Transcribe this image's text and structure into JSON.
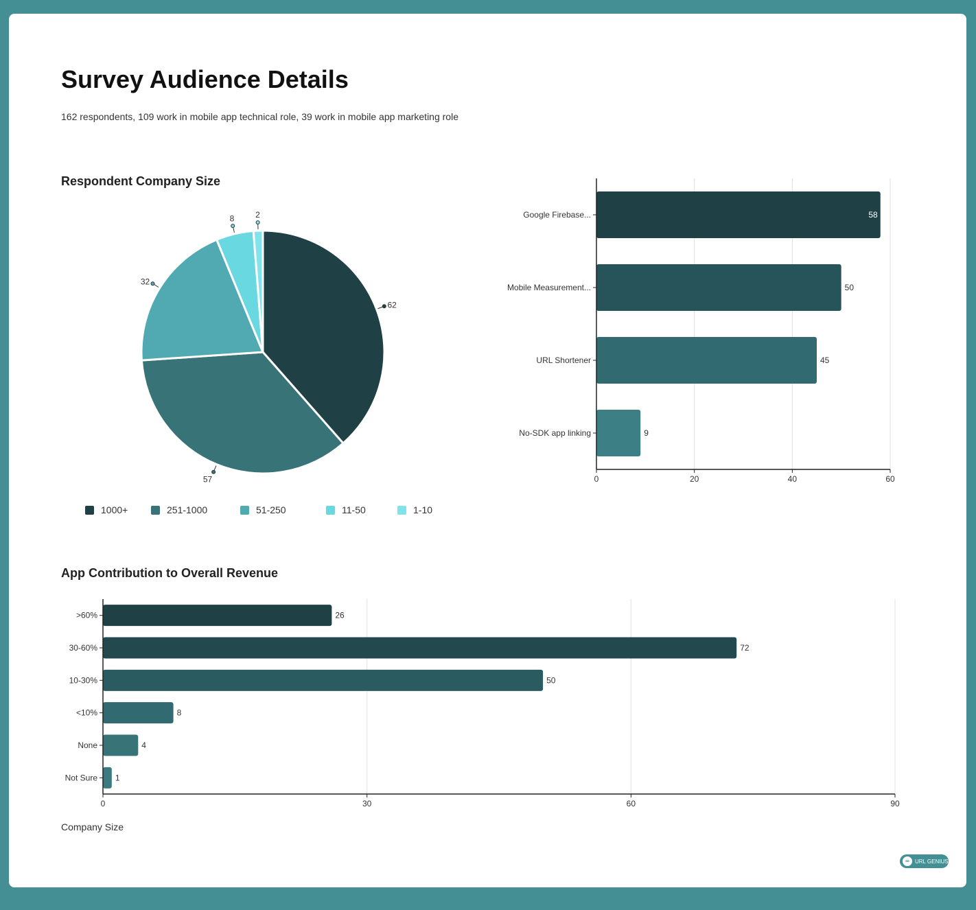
{
  "page": {
    "title": "Survey Audience Details",
    "subtitle": "162 respondents, 109 work in mobile app technical role, 39 work in mobile app marketing role",
    "footer_label": "Company Size",
    "badge_text": "URL GENIUS",
    "badge_icon": "link-icon"
  },
  "chart_data": [
    {
      "type": "pie",
      "title": "Respondent Company Size",
      "categories": [
        "1000+",
        "251-1000",
        "51-250",
        "11-50",
        "1-10"
      ],
      "values": [
        62,
        57,
        32,
        8,
        2
      ],
      "colors": [
        "#1f4145",
        "#387378",
        "#51a9b2",
        "#6ad8e0",
        "#80e4ea"
      ],
      "legend": "bottom"
    },
    {
      "type": "bar",
      "orientation": "horizontal",
      "title": "",
      "categories": [
        "Google Firebase...",
        "Mobile Measurement...",
        "URL Shortener",
        "No-SDK app linking"
      ],
      "values": [
        58,
        50,
        45,
        9
      ],
      "colors": [
        "#1f4145",
        "#27545a",
        "#316b71",
        "#3c7f85"
      ],
      "xlim": [
        0,
        60
      ],
      "xticks": [
        "0",
        "20",
        "40",
        "60"
      ],
      "grid": true
    },
    {
      "type": "bar",
      "orientation": "horizontal",
      "title": "App Contribution to Overall Revenue",
      "categories": [
        ">60%",
        "30-60%",
        "10-30%",
        "<10%",
        "None",
        "Not Sure"
      ],
      "values": [
        26,
        72,
        50,
        8,
        4,
        1
      ],
      "colors": [
        "#1f4145",
        "#224a4e",
        "#2a5b60",
        "#316a70",
        "#387378",
        "#3a7a80"
      ],
      "xlim": [
        0,
        90
      ],
      "xticks": [
        "0",
        "30",
        "60",
        "90"
      ],
      "grid": true
    }
  ]
}
